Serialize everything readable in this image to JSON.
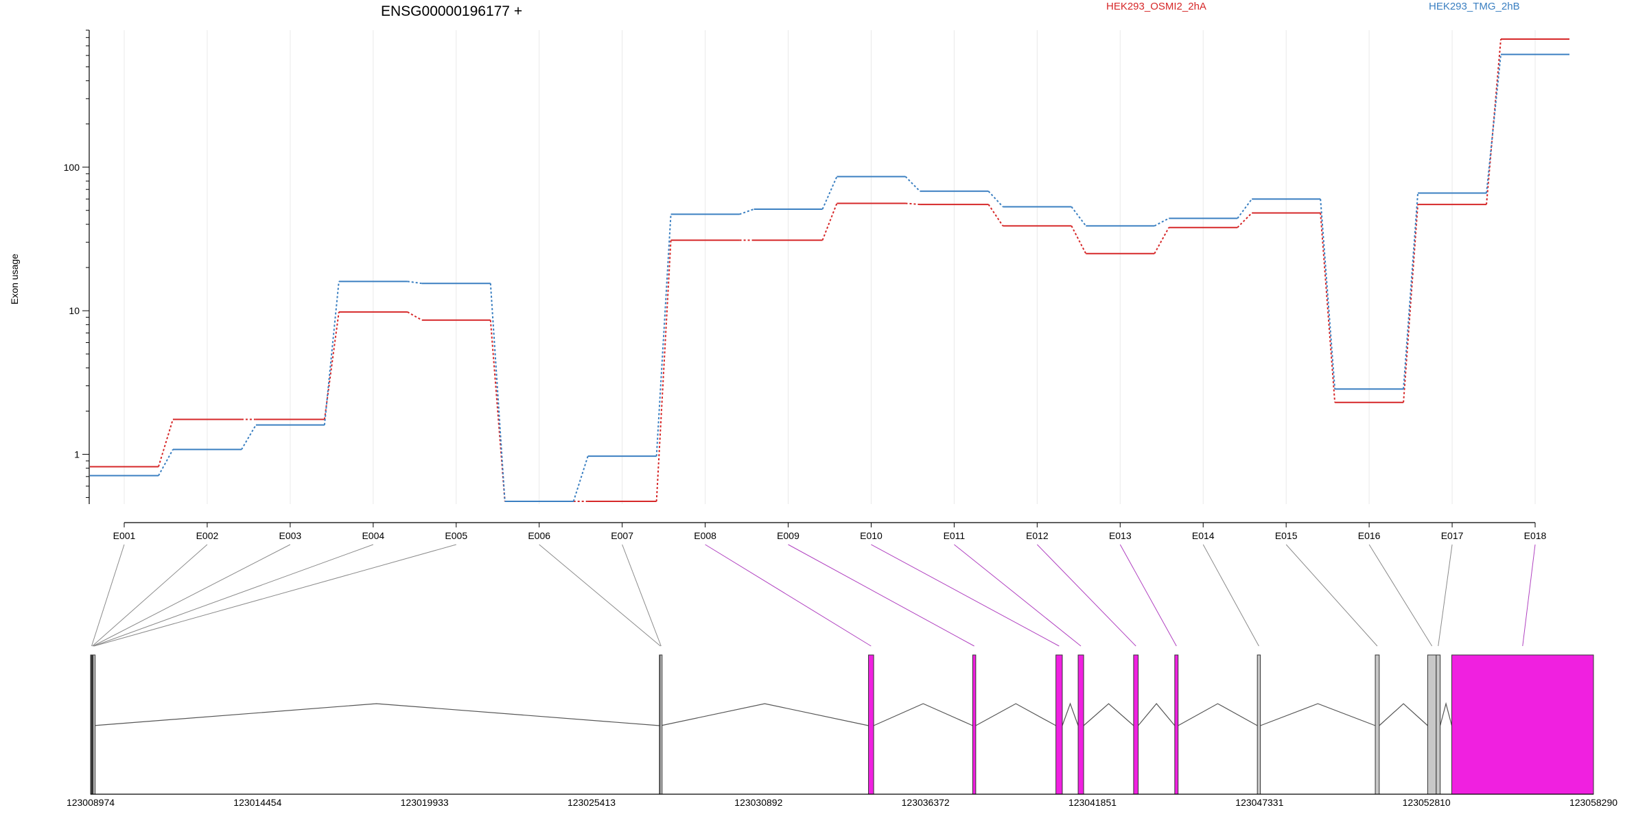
{
  "chart_data": {
    "type": "line",
    "title": "ENSG00000196177 +",
    "ylabel": "Exon usage",
    "y_scale": "log",
    "y_ticks": [
      1,
      10,
      100
    ],
    "ylim": [
      0.45,
      900
    ],
    "grid": "vertical, light",
    "categories": [
      "E001",
      "E002",
      "E003",
      "E004",
      "E005",
      "E006",
      "E007",
      "E008",
      "E009",
      "E010",
      "E011",
      "E012",
      "E013",
      "E014",
      "E015",
      "E016",
      "E017",
      "E018"
    ],
    "series": [
      {
        "name": "HEK293_OSMI2_2hA",
        "color": "#d62728",
        "values": [
          0.82,
          1.75,
          1.75,
          9.8,
          8.6,
          0.47,
          0.47,
          31,
          31,
          56,
          55,
          39,
          25,
          38,
          48,
          2.3,
          55,
          780
        ]
      },
      {
        "name": "HEK293_TMG_2hB",
        "color": "#3a7fc1",
        "values": [
          0.71,
          1.08,
          1.6,
          16,
          15.5,
          0.47,
          0.97,
          47,
          51,
          86,
          68,
          53,
          39,
          44,
          60,
          2.85,
          66,
          610
        ]
      }
    ],
    "gene_model": {
      "coordinate_labels": [
        "123008974",
        "123014454",
        "123019933",
        "123025413",
        "123030892",
        "123036372",
        "123041851",
        "123047331",
        "123052810",
        "123058290"
      ],
      "coord_start": 123008974,
      "coord_end": 123058290,
      "exons": [
        {
          "id": "E001",
          "start": 123008974,
          "end": 123008998,
          "color": "#c8c8c8"
        },
        {
          "id": "E002",
          "start": 123008998,
          "end": 123009020,
          "color": "#c8c8c8"
        },
        {
          "id": "E003",
          "start": 123009020,
          "end": 123009040,
          "color": "#c8c8c8"
        },
        {
          "id": "E004",
          "start": 123009040,
          "end": 123009056,
          "color": "#c8c8c8"
        },
        {
          "id": "E005",
          "start": 123009056,
          "end": 123009070,
          "color": "#c8c8c8"
        },
        {
          "id": "E006",
          "start": 123027640,
          "end": 123027660,
          "color": "#c8c8c8"
        },
        {
          "id": "E007",
          "start": 123027660,
          "end": 123027690,
          "color": "#c8c8c8"
        },
        {
          "id": "E008",
          "start": 123034500,
          "end": 123034670,
          "color": "#f020e0"
        },
        {
          "id": "E009",
          "start": 123037920,
          "end": 123038020,
          "color": "#f020e0"
        },
        {
          "id": "E010",
          "start": 123040650,
          "end": 123040860,
          "color": "#f020e0"
        },
        {
          "id": "E011",
          "start": 123041380,
          "end": 123041560,
          "color": "#f020e0"
        },
        {
          "id": "E012",
          "start": 123043200,
          "end": 123043350,
          "color": "#f020e0"
        },
        {
          "id": "E013",
          "start": 123044550,
          "end": 123044660,
          "color": "#f020e0"
        },
        {
          "id": "E014",
          "start": 123047260,
          "end": 123047360,
          "color": "#c8c8c8"
        },
        {
          "id": "E015",
          "start": 123051130,
          "end": 123051260,
          "color": "#c8c8c8"
        },
        {
          "id": "E016",
          "start": 123052850,
          "end": 123053130,
          "color": "#c8c8c8"
        },
        {
          "id": "E017",
          "start": 123053130,
          "end": 123053260,
          "color": "#c8c8c8"
        },
        {
          "id": "E018",
          "start": 123053640,
          "end": 123058290,
          "color": "#f020e0"
        }
      ],
      "introns": [
        [
          123009070,
          123027640
        ],
        [
          123027690,
          123034500
        ],
        [
          123034670,
          123037920
        ],
        [
          123038020,
          123040650
        ],
        [
          123040860,
          123041380
        ],
        [
          123041560,
          123043200
        ],
        [
          123043350,
          123044550
        ],
        [
          123044660,
          123047260
        ],
        [
          123047360,
          123051130
        ],
        [
          123051260,
          123052850
        ],
        [
          123053260,
          123053640
        ]
      ]
    }
  }
}
